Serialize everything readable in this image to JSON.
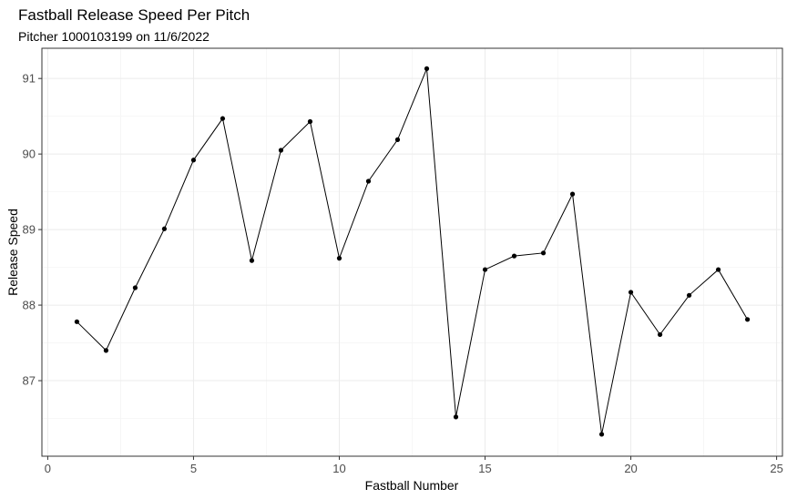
{
  "chart_data": {
    "type": "line",
    "title": "Fastball Release Speed Per Pitch",
    "subtitle": "Pitcher 1000103199 on 11/6/2022",
    "xlabel": "Fastball Number",
    "ylabel": "Release Speed",
    "xlim": [
      -0.2,
      25.2
    ],
    "ylim": [
      86.0,
      91.4
    ],
    "xticks": [
      0,
      5,
      10,
      15,
      20,
      25
    ],
    "yticks": [
      87,
      88,
      89,
      90,
      91
    ],
    "grid": true,
    "x": [
      1,
      2,
      3,
      4,
      5,
      6,
      7,
      8,
      9,
      10,
      11,
      12,
      13,
      14,
      15,
      16,
      17,
      18,
      19,
      20,
      21,
      22,
      23,
      24
    ],
    "y": [
      87.78,
      87.4,
      88.23,
      89.01,
      89.92,
      90.47,
      88.59,
      90.05,
      90.43,
      88.62,
      89.64,
      90.19,
      91.13,
      86.52,
      88.47,
      88.65,
      88.69,
      89.47,
      86.29,
      88.17,
      87.61,
      88.13,
      88.47,
      87.81
    ],
    "colors": {
      "line": "#000000",
      "point": "#000000",
      "grid_major": "#ebebeb",
      "grid_minor": "#f5f5f5",
      "panel_border": "#333333"
    }
  }
}
